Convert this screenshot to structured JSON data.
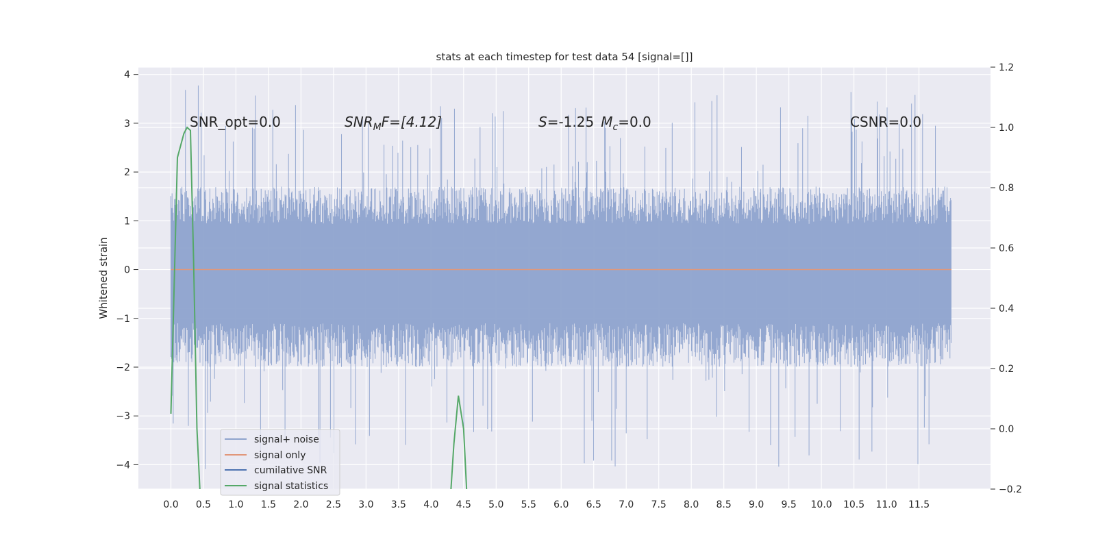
{
  "chart_data": {
    "type": "line",
    "title": "stats at each timestep for test data 54 [signal=[]]",
    "xlabel": "",
    "ylabel": "Whitened strain",
    "xlim": [
      -0.5,
      12.6
    ],
    "ylim": [
      -4.5,
      4.15
    ],
    "y2lim": [
      -0.2,
      1.2
    ],
    "x_ticks": [
      "0.0",
      "0.5",
      "1.0",
      "1.5",
      "2.0",
      "2.5",
      "3.0",
      "3.5",
      "4.0",
      "4.5",
      "5.0",
      "5.5",
      "6.0",
      "6.5",
      "7.0",
      "7.5",
      "8.0",
      "8.5",
      "9.0",
      "9.5",
      "10.0",
      "10.5",
      "11.0",
      "11.5"
    ],
    "y_ticks": [
      "4",
      "3",
      "2",
      "1",
      "0",
      "−1",
      "−2",
      "−3",
      "−4"
    ],
    "y2_ticks": [
      "1.2",
      "1.0",
      "0.8",
      "0.6",
      "0.4",
      "0.2",
      "0.0",
      "−0.2"
    ],
    "grid": true,
    "legend_position": "lower-left",
    "annotations": {
      "snr_opt": "SNR_opt=0.0",
      "snr_mf_base": "SNR",
      "snr_mf_sub": "M",
      "snr_mf_rest": "F=[4.12]",
      "s_main": "S",
      "s_rest": "=-1.25",
      "mc_main": "M",
      "mc_sub": "c",
      "mc_rest": "=0.0",
      "csnr": "CSNR=0.0"
    },
    "series": [
      {
        "name": "signal+ noise",
        "color": "#8ea3cd",
        "x_range": [
          0.0,
          12.0
        ],
        "envelope": {
          "typical_max": 1.7,
          "typical_min": -2.0,
          "peak_max": 3.78,
          "peak_min": -4.1
        }
      },
      {
        "name": "signal only",
        "color": "#e1977a",
        "x": [
          0.0,
          12.0
        ],
        "y": [
          0.0,
          0.0
        ]
      },
      {
        "name": "cumilative SNR",
        "color": "#4c72b0",
        "x": [],
        "y": []
      },
      {
        "name": "signal statistics",
        "color": "#55a868",
        "axis": "right",
        "x": [
          0.0,
          0.1,
          0.2,
          0.25,
          0.3,
          0.35,
          0.4,
          0.45,
          4.3,
          4.35,
          4.42,
          4.5,
          4.55
        ],
        "y": [
          0.05,
          0.9,
          0.98,
          1.0,
          0.99,
          0.55,
          0.0,
          -0.22,
          -0.22,
          -0.05,
          0.11,
          0.0,
          -0.22
        ]
      }
    ]
  },
  "legend": {
    "items": [
      "signal+ noise",
      "signal only",
      "cumilative SNR",
      "signal statistics"
    ],
    "colors": [
      "#8ea3cd",
      "#e1977a",
      "#4c72b0",
      "#55a868"
    ]
  }
}
